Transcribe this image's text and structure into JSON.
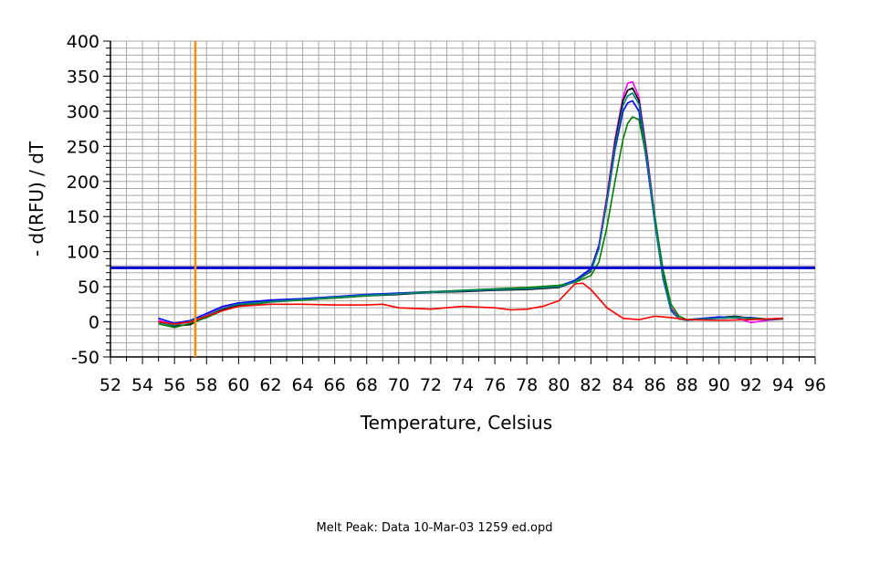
{
  "chart_data": {
    "type": "line",
    "xlabel": "Temperature, Celsius",
    "ylabel": "- d(RFU) / dT",
    "xlim": [
      52,
      96
    ],
    "ylim": [
      -50,
      400
    ],
    "x_ticks": [
      52,
      54,
      56,
      58,
      60,
      62,
      64,
      66,
      68,
      70,
      72,
      74,
      76,
      78,
      80,
      82,
      84,
      86,
      88,
      90,
      92,
      94,
      96
    ],
    "y_ticks": [
      -50,
      0,
      50,
      100,
      150,
      200,
      250,
      300,
      350,
      400
    ],
    "grid": true,
    "vertical_marker": {
      "x": 57.3,
      "color": "#ff8c00"
    },
    "threshold_line": {
      "y": 77,
      "color": "#0000cc"
    },
    "series": [
      {
        "color": "#ff00ff",
        "x": [
          55,
          56,
          57,
          58,
          59,
          60,
          62,
          64,
          66,
          68,
          70,
          72,
          74,
          76,
          78,
          80,
          81,
          82,
          82.5,
          83,
          83.5,
          84,
          84.3,
          84.6,
          85,
          85.5,
          86,
          86.5,
          87,
          87.5,
          88,
          89,
          90,
          91,
          92,
          93,
          94
        ],
        "values": [
          2,
          -4,
          0,
          10,
          20,
          25,
          30,
          33,
          35,
          38,
          40,
          42,
          44,
          46,
          47,
          50,
          58,
          75,
          110,
          180,
          260,
          320,
          340,
          342,
          320,
          240,
          150,
          70,
          20,
          5,
          2,
          4,
          5,
          6,
          -1,
          2,
          4
        ]
      },
      {
        "color": "#000000",
        "x": [
          55,
          56,
          57,
          58,
          59,
          60,
          62,
          64,
          66,
          68,
          70,
          72,
          74,
          76,
          78,
          80,
          81,
          82,
          82.5,
          83,
          83.5,
          84,
          84.3,
          84.6,
          85,
          85.5,
          86,
          86.5,
          87,
          87.5,
          88,
          89,
          90,
          91,
          92,
          93,
          94
        ],
        "values": [
          0,
          -6,
          -4,
          8,
          18,
          24,
          30,
          32,
          34,
          37,
          39,
          42,
          43,
          45,
          46,
          49,
          57,
          72,
          105,
          175,
          255,
          315,
          330,
          333,
          315,
          235,
          145,
          65,
          18,
          4,
          2,
          4,
          6,
          8,
          5,
          3,
          4
        ]
      },
      {
        "color": "#0000ff",
        "x": [
          55,
          56,
          57,
          58,
          59,
          60,
          62,
          64,
          66,
          68,
          70,
          72,
          74,
          76,
          78,
          80,
          81,
          82,
          82.5,
          83,
          83.5,
          84,
          84.3,
          84.6,
          85,
          85.5,
          86,
          86.5,
          87,
          87.5,
          88,
          89,
          90,
          91,
          92,
          93,
          94
        ],
        "values": [
          5,
          -2,
          2,
          12,
          22,
          27,
          31,
          33,
          36,
          39,
          41,
          43,
          44,
          46,
          48,
          51,
          59,
          76,
          108,
          170,
          245,
          300,
          312,
          315,
          300,
          225,
          140,
          62,
          16,
          4,
          3,
          5,
          7,
          6,
          6,
          4,
          5
        ]
      },
      {
        "color": "#008000",
        "x": [
          55,
          56,
          57,
          58,
          59,
          60,
          62,
          64,
          66,
          68,
          70,
          72,
          74,
          76,
          78,
          80,
          81,
          82,
          82.5,
          83,
          83.5,
          84,
          84.3,
          84.6,
          85,
          85.5,
          86,
          86.5,
          87,
          87.5,
          88,
          89,
          90,
          91,
          92,
          93,
          94
        ],
        "values": [
          -3,
          -8,
          -2,
          6,
          16,
          22,
          28,
          31,
          34,
          37,
          40,
          43,
          45,
          47,
          49,
          52,
          56,
          66,
          85,
          135,
          200,
          260,
          283,
          292,
          288,
          230,
          150,
          75,
          25,
          8,
          3,
          4,
          5,
          6,
          5,
          4,
          4
        ]
      },
      {
        "color": "#008080",
        "x": [
          55,
          56,
          57,
          58,
          59,
          60,
          62,
          64,
          66,
          68,
          70,
          72,
          74,
          76,
          78,
          80,
          81,
          82,
          82.5,
          83,
          83.5,
          84,
          84.3,
          84.6,
          85,
          85.5,
          86,
          86.5,
          87,
          87.5,
          88,
          89,
          90,
          91,
          92,
          93,
          94
        ],
        "values": [
          -1,
          -5,
          1,
          9,
          19,
          25,
          29,
          32,
          35,
          38,
          40,
          42,
          44,
          46,
          47,
          50,
          57,
          73,
          104,
          172,
          250,
          308,
          322,
          326,
          310,
          232,
          142,
          64,
          17,
          4,
          2,
          4,
          5,
          7,
          4,
          3,
          5
        ]
      },
      {
        "color": "#ff0000",
        "x": [
          55,
          56,
          57,
          58,
          59,
          60,
          62,
          64,
          66,
          68,
          69,
          70,
          72,
          74,
          76,
          77,
          78,
          79,
          80,
          80.5,
          81,
          81.5,
          82,
          83,
          84,
          85,
          86,
          87,
          88,
          90,
          92,
          94
        ],
        "values": [
          0,
          -3,
          0,
          8,
          16,
          22,
          25,
          25,
          24,
          24,
          25,
          20,
          18,
          22,
          20,
          17,
          18,
          22,
          30,
          42,
          54,
          55,
          46,
          20,
          5,
          3,
          8,
          6,
          3,
          2,
          3,
          5
        ]
      }
    ]
  },
  "footer": {
    "caption": "Melt Peak: Data 10-Mar-03 1259 ed.opd"
  }
}
